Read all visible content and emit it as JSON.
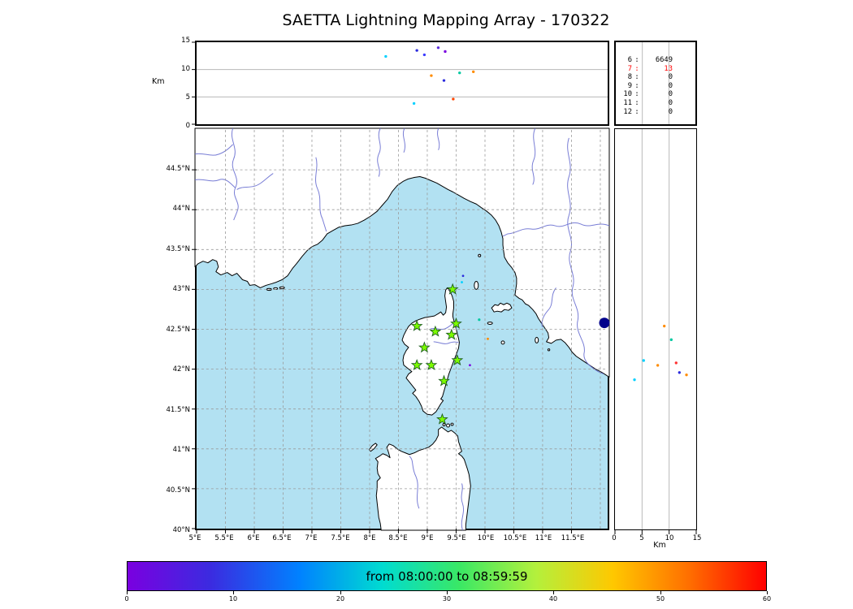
{
  "title": "SAETTA Lightning Mapping Array - 170322",
  "ui": {
    "sep": ":"
  },
  "axes": {
    "alt_axis_label": "Km",
    "top_panel_yticks": [
      "15",
      "10",
      "5",
      "0"
    ],
    "map_xticks": [
      "5°E",
      "5.5°E",
      "6°E",
      "6.5°E",
      "7°E",
      "7.5°E",
      "8°E",
      "8.5°E",
      "9°E",
      "9.5°E",
      "10°E",
      "10.5°E",
      "11°E",
      "11.5°E"
    ],
    "map_yticks": [
      "44.5°N",
      "44°N",
      "43.5°N",
      "43°N",
      "42.5°N",
      "42°N",
      "41.5°N",
      "41°N",
      "40.5°N",
      "40°N"
    ],
    "right_panel_xticks": [
      "0",
      "5",
      "10",
      "15"
    ],
    "right_panel_xlabel": "Km"
  },
  "colors": {
    "sea": "#b2e1f2",
    "land": "#ffffff",
    "coast": "#000000",
    "river": "#6a6fd1",
    "grid": "#999999",
    "panel_grid": "#b8b8b8",
    "station_fill": "#7CFC00",
    "station_edge": "#1f5f1f",
    "cluster": "#00008b",
    "count_alert": "#ff0000"
  },
  "chart_data": [
    {
      "id": "alt_vs_lon",
      "type": "scatter",
      "ylabel": "Km",
      "xlim": [
        5,
        12.13
      ],
      "ylim": [
        0,
        15
      ],
      "grid_y_km": [
        5,
        10
      ],
      "points": [
        {
          "lon": 8.28,
          "alt": 12.4,
          "color": "#00d0ff"
        },
        {
          "lon": 8.82,
          "alt": 13.5,
          "color": "#2b2bdd"
        },
        {
          "lon": 8.95,
          "alt": 12.7,
          "color": "#3c3cff"
        },
        {
          "lon": 9.19,
          "alt": 14.0,
          "color": "#5a2bdd"
        },
        {
          "lon": 9.31,
          "alt": 13.3,
          "color": "#7a00e0"
        },
        {
          "lon": 9.07,
          "alt": 8.9,
          "color": "#ff8c00"
        },
        {
          "lon": 9.29,
          "alt": 8.0,
          "color": "#2b2bdd"
        },
        {
          "lon": 9.56,
          "alt": 9.4,
          "color": "#00c8a0"
        },
        {
          "lon": 9.8,
          "alt": 9.6,
          "color": "#ff8c00"
        },
        {
          "lon": 8.77,
          "alt": 3.8,
          "color": "#00d0ff"
        },
        {
          "lon": 9.45,
          "alt": 4.6,
          "color": "#ff4500"
        }
      ]
    },
    {
      "id": "source_counts",
      "type": "table",
      "columns": [
        "bin",
        "count"
      ],
      "rows": [
        {
          "bin": "6",
          "count": "6649",
          "color": "#000000"
        },
        {
          "bin": "7",
          "count": "13",
          "color": "#ff0000"
        },
        {
          "bin": "8",
          "count": "0",
          "color": "#000000"
        },
        {
          "bin": "9",
          "count": "0",
          "color": "#000000"
        },
        {
          "bin": "10",
          "count": "0",
          "color": "#000000"
        },
        {
          "bin": "11",
          "count": "0",
          "color": "#000000"
        },
        {
          "bin": "12",
          "count": "0",
          "color": "#000000"
        }
      ]
    },
    {
      "id": "map_panel",
      "type": "scatter",
      "xlim": [
        5,
        12.13
      ],
      "ylim": [
        40,
        45
      ],
      "stations": [
        {
          "lon": 9.44,
          "lat": 43.0
        },
        {
          "lon": 8.82,
          "lat": 42.54
        },
        {
          "lon": 9.14,
          "lat": 42.47
        },
        {
          "lon": 9.42,
          "lat": 42.43
        },
        {
          "lon": 9.5,
          "lat": 42.57
        },
        {
          "lon": 8.95,
          "lat": 42.27
        },
        {
          "lon": 8.82,
          "lat": 42.05
        },
        {
          "lon": 9.07,
          "lat": 42.05
        },
        {
          "lon": 9.52,
          "lat": 42.11
        },
        {
          "lon": 9.29,
          "lat": 41.85
        },
        {
          "lon": 9.26,
          "lat": 41.37
        }
      ],
      "events": [
        {
          "lon": 12.07,
          "lat": 42.58,
          "color": "#00008b",
          "r": 6.5
        },
        {
          "lon": 9.9,
          "lat": 42.62,
          "color": "#00c8a0",
          "r": 1.6
        },
        {
          "lon": 10.05,
          "lat": 42.38,
          "color": "#ff8c00",
          "r": 1.5
        },
        {
          "lon": 9.62,
          "lat": 43.17,
          "color": "#2b2bdd",
          "r": 1.4
        },
        {
          "lon": 9.6,
          "lat": 43.09,
          "color": "#00d0ff",
          "r": 1.4
        },
        {
          "lon": 9.74,
          "lat": 42.05,
          "color": "#7a00e0",
          "r": 1.4
        }
      ]
    },
    {
      "id": "alt_vs_lat",
      "type": "scatter",
      "xlabel": "Km",
      "xlim": [
        0,
        15
      ],
      "ylim": [
        40,
        45
      ],
      "grid_x_km": [
        5,
        10
      ],
      "points": [
        {
          "alt": 5.3,
          "lat": 42.11,
          "color": "#00d0ff"
        },
        {
          "alt": 9.1,
          "lat": 42.54,
          "color": "#ff8c00"
        },
        {
          "alt": 11.3,
          "lat": 42.08,
          "color": "#ff3030"
        },
        {
          "alt": 7.9,
          "lat": 42.05,
          "color": "#ff8c00"
        },
        {
          "alt": 11.9,
          "lat": 41.96,
          "color": "#2b2bdd"
        },
        {
          "alt": 13.2,
          "lat": 41.93,
          "color": "#ff8c00"
        },
        {
          "alt": 3.6,
          "lat": 41.87,
          "color": "#00d0ff"
        },
        {
          "alt": 10.4,
          "lat": 42.37,
          "color": "#00c8a0"
        }
      ]
    },
    {
      "id": "time_colorbar",
      "type": "colorbar",
      "title": "from 08:00:00 to 08:59:59",
      "range": [
        0,
        60
      ],
      "ticks": [
        "0",
        "10",
        "20",
        "30",
        "40",
        "50",
        "60"
      ],
      "stops": [
        {
          "color": "#7a00e0",
          "pos": 0
        },
        {
          "color": "#3b2be0",
          "pos": 13
        },
        {
          "color": "#0082ff",
          "pos": 27
        },
        {
          "color": "#00dcd0",
          "pos": 40
        },
        {
          "color": "#3ae865",
          "pos": 52
        },
        {
          "color": "#b4f03c",
          "pos": 64
        },
        {
          "color": "#ffc800",
          "pos": 76
        },
        {
          "color": "#ff6e00",
          "pos": 88
        },
        {
          "color": "#ff0000",
          "pos": 100
        }
      ]
    }
  ]
}
